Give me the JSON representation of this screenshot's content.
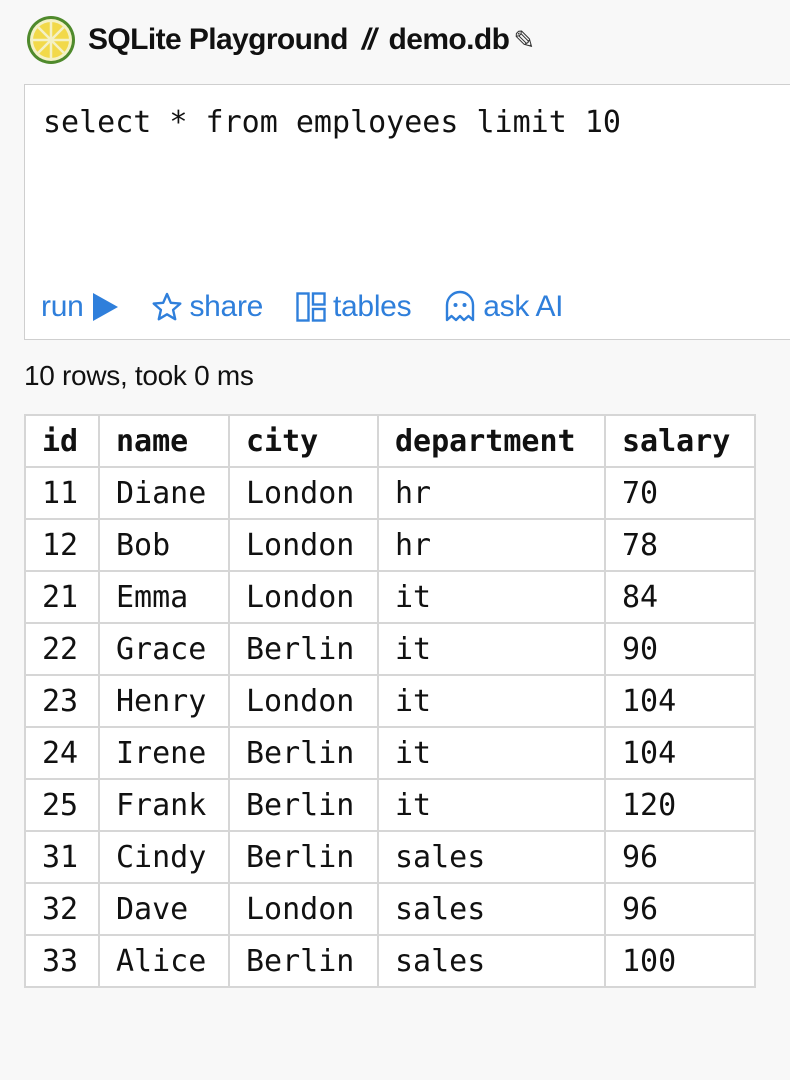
{
  "header": {
    "app_title": "SQLite Playground",
    "separator": "//",
    "db_name": "demo.db",
    "edit_icon": "pencil-icon",
    "logo_icon": "lime-slice-icon"
  },
  "editor": {
    "query": "select * from employees limit 10"
  },
  "toolbar": {
    "run_label": "run",
    "run_icon": "play-icon",
    "share_label": "share",
    "share_icon": "star-icon",
    "tables_label": "tables",
    "tables_icon": "layout-grid-icon",
    "ask_ai_label": "ask AI",
    "ask_ai_icon": "ghost-icon",
    "accent_color": "#2f7fdb"
  },
  "status": {
    "text": "10 rows, took 0 ms"
  },
  "results": {
    "columns": [
      "id",
      "name",
      "city",
      "department",
      "salary"
    ],
    "rows": [
      [
        "11",
        "Diane",
        "London",
        "hr",
        "70"
      ],
      [
        "12",
        "Bob",
        "London",
        "hr",
        "78"
      ],
      [
        "21",
        "Emma",
        "London",
        "it",
        "84"
      ],
      [
        "22",
        "Grace",
        "Berlin",
        "it",
        "90"
      ],
      [
        "23",
        "Henry",
        "London",
        "it",
        "104"
      ],
      [
        "24",
        "Irene",
        "Berlin",
        "it",
        "104"
      ],
      [
        "25",
        "Frank",
        "Berlin",
        "it",
        "120"
      ],
      [
        "31",
        "Cindy",
        "Berlin",
        "sales",
        "96"
      ],
      [
        "32",
        "Dave",
        "London",
        "sales",
        "96"
      ],
      [
        "33",
        "Alice",
        "Berlin",
        "sales",
        "100"
      ]
    ]
  }
}
